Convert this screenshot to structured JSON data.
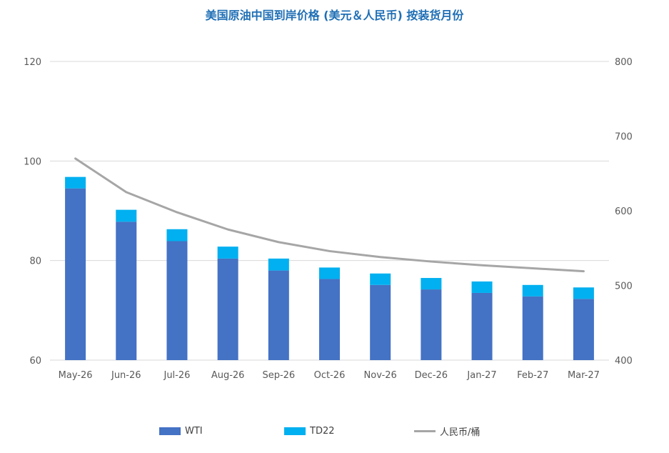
{
  "chart_data": {
    "type": "bar",
    "title": "美国原油中国到岸价格 (美元＆人民币) 按装货月份",
    "categories": [
      "May-26",
      "Jun-26",
      "Jul-26",
      "Aug-26",
      "Sep-26",
      "Oct-26",
      "Nov-26",
      "Dec-26",
      "Jan-27",
      "Feb-27",
      "Mar-27"
    ],
    "series": [
      {
        "name": "WTI",
        "axis": "left",
        "stacked": true,
        "color": "#4472c4",
        "values": [
          94.5,
          87.8,
          83.9,
          80.4,
          78.0,
          76.3,
          75.1,
          74.2,
          73.5,
          72.8,
          72.3
        ]
      },
      {
        "name": "TD22",
        "axis": "left",
        "stacked": true,
        "color": "#00b0f0",
        "values": [
          2.3,
          2.4,
          2.4,
          2.4,
          2.4,
          2.3,
          2.3,
          2.3,
          2.3,
          2.3,
          2.3
        ]
      },
      {
        "name": "人民币/桶",
        "axis": "right",
        "type": "line",
        "color": "#a6a6a6",
        "values": [
          670,
          625,
          598,
          575,
          558,
          546,
          538,
          532,
          527,
          523,
          519
        ]
      }
    ],
    "ylim": [
      60,
      120
    ],
    "yticks": [
      "60",
      "80",
      "100",
      "120"
    ],
    "y2lim": [
      400,
      800
    ],
    "y2ticks": [
      "400",
      "500",
      "600",
      "700",
      "800"
    ],
    "grid": true,
    "legend_position": "bottom"
  }
}
